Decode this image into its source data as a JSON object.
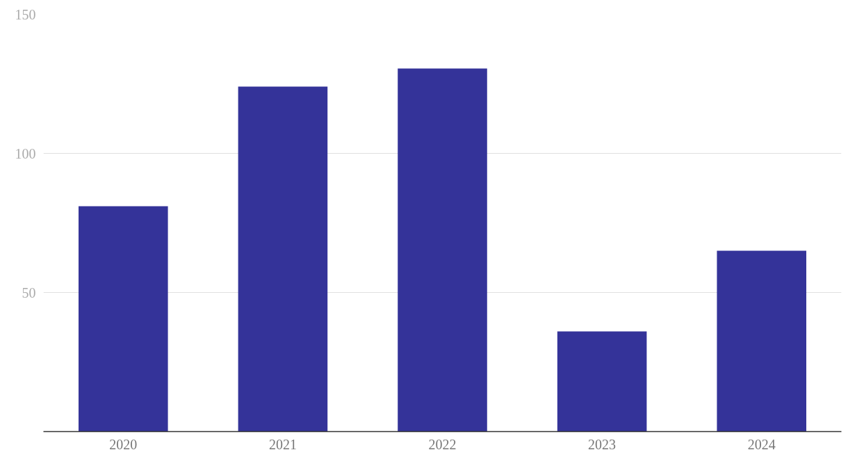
{
  "chart_data": {
    "type": "bar",
    "categories": [
      "2020",
      "2021",
      "2022",
      "2023",
      "2024"
    ],
    "values": [
      81,
      124,
      130.5,
      36,
      65
    ],
    "color": "#343399",
    "ylim": [
      0,
      150
    ],
    "yticks": [
      50,
      100,
      150
    ],
    "grid": "y"
  }
}
